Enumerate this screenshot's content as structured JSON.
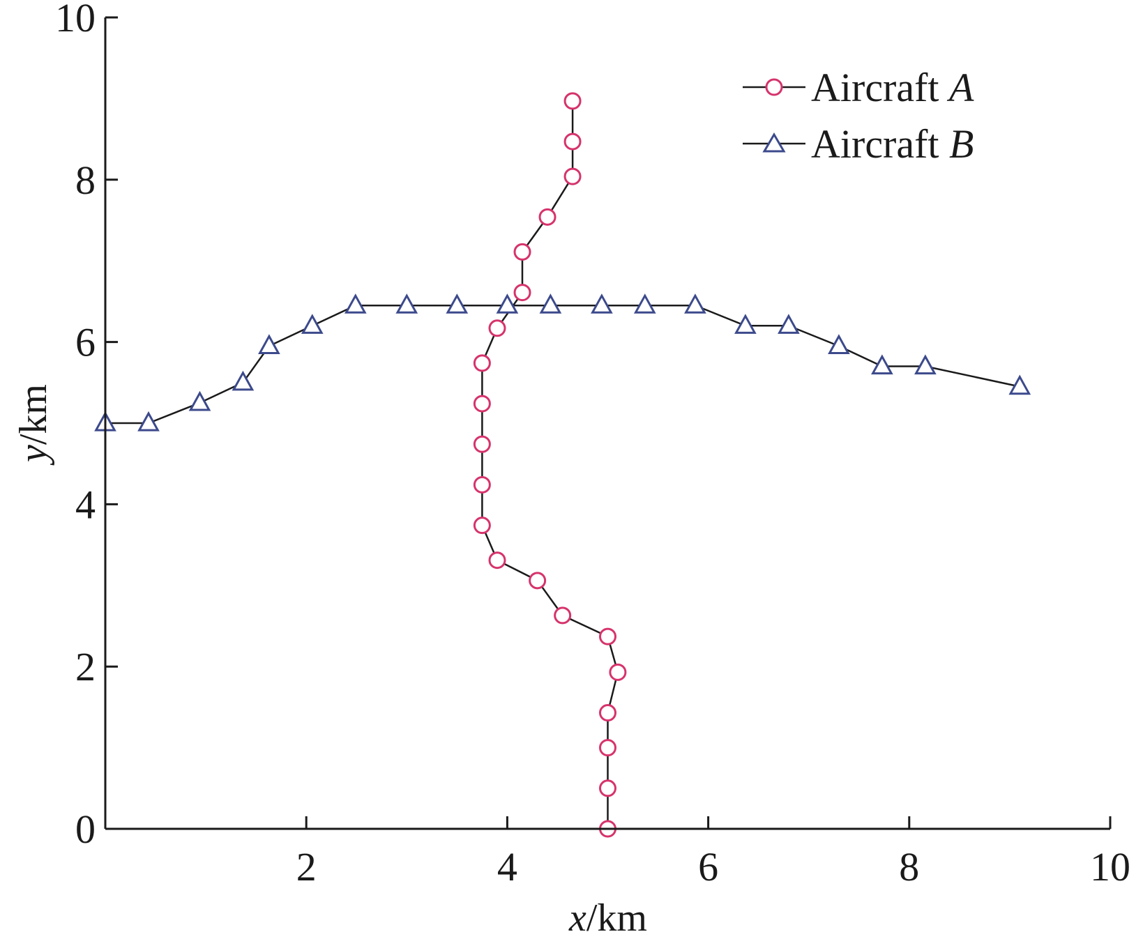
{
  "chart_data": {
    "type": "line",
    "xlabel": {
      "var": "x",
      "unit": "/km"
    },
    "ylabel": {
      "var": "y",
      "unit": "/km"
    },
    "xlim": [
      0,
      10
    ],
    "ylim": [
      0,
      10
    ],
    "xticks": [
      "2",
      "4",
      "6",
      "8",
      "10"
    ],
    "yticks": [
      "0",
      "2",
      "4",
      "6",
      "8",
      "10"
    ],
    "grid": false,
    "legend_position": "top-right",
    "series": [
      {
        "name": "Aircraft A",
        "name_text": "Aircraft ",
        "name_var": "A",
        "marker": "circle",
        "color": "#d6336c",
        "line_color": "#1a1a1a",
        "x": [
          5.0,
          5.0,
          5.0,
          5.0,
          5.1,
          5.0,
          4.55,
          4.3,
          3.9,
          3.75,
          3.75,
          3.75,
          3.75,
          3.75,
          3.9,
          4.15,
          4.15,
          4.4,
          4.65,
          4.65,
          4.65
        ],
        "y": [
          0.0,
          0.5,
          1.0,
          1.43,
          1.93,
          2.37,
          2.63,
          3.06,
          3.31,
          3.74,
          4.24,
          4.74,
          5.24,
          5.74,
          6.17,
          6.61,
          7.11,
          7.54,
          8.04,
          8.47,
          8.97
        ]
      },
      {
        "name": "Aircraft B",
        "name_text": "Aircraft ",
        "name_var": "B",
        "marker": "triangle",
        "color": "#3c4a8c",
        "line_color": "#1a1a1a",
        "x": [
          0.0,
          0.43,
          0.94,
          1.37,
          1.63,
          2.06,
          2.49,
          3.0,
          3.5,
          4.0,
          4.43,
          4.94,
          5.37,
          5.87,
          6.37,
          6.8,
          7.3,
          7.73,
          8.16,
          9.1
        ],
        "y": [
          5.0,
          5.0,
          5.25,
          5.5,
          5.95,
          6.2,
          6.45,
          6.45,
          6.45,
          6.45,
          6.45,
          6.45,
          6.45,
          6.45,
          6.2,
          6.2,
          5.95,
          5.7,
          5.7,
          5.45
        ]
      }
    ]
  }
}
